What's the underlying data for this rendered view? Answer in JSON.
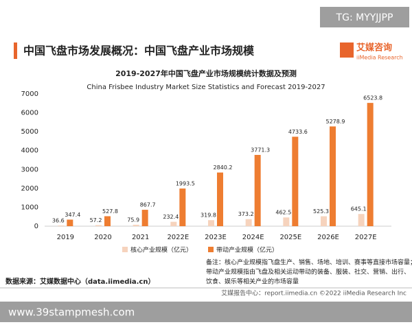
{
  "tag": "TG: MYYJJPP",
  "header": {
    "title": "中国飞盘市场发展概况：中国飞盘产业市场规模",
    "logo_cn": "艾媒咨询",
    "logo_en": "iiMedia Research"
  },
  "chart_data": {
    "type": "bar",
    "title": "2019-2027年中国飞盘产业市场规模统计数据及预测",
    "subtitle": "China Frisbee Industry Market Size Statistics and Forecast 2019-2027",
    "categories": [
      "2019",
      "2020",
      "2021",
      "2022E",
      "2023E",
      "2024E",
      "2025E",
      "2026E",
      "2027E"
    ],
    "series": [
      {
        "name": "核心产业规模（亿元）",
        "color": "#f6d3bd",
        "values": [
          36.6,
          57.2,
          75.9,
          232.4,
          319.8,
          373.2,
          462.5,
          525.3,
          645.1
        ]
      },
      {
        "name": "带动产业规模（亿元）",
        "color": "#ee7d31",
        "values": [
          347.4,
          527.8,
          867.7,
          1993.5,
          2840.2,
          3771.3,
          4733.6,
          5278.9,
          6523.8
        ]
      }
    ],
    "ylim": [
      0,
      7000
    ],
    "yticks": [
      0,
      1000,
      2000,
      3000,
      4000,
      5000,
      6000,
      7000
    ],
    "grid": false,
    "legend": "bottom"
  },
  "note": [
    "备注：核心产业规模指飞盘生产、销售、场地、培训、赛事等直接市场容量；",
    "带动产业规模指由飞盘及相关运动带动的装备、服装、社交、营销、出行、",
    "饮食、娱乐等相关产业的市场容量"
  ],
  "source": "数据来源：艾媒数据中心（data.iimedia.cn）",
  "footer": "艾媒报告中心：report.iimedia.cn  ©2022  iiMedia Research  Inc",
  "watermark": "www.39stampmesh.com"
}
